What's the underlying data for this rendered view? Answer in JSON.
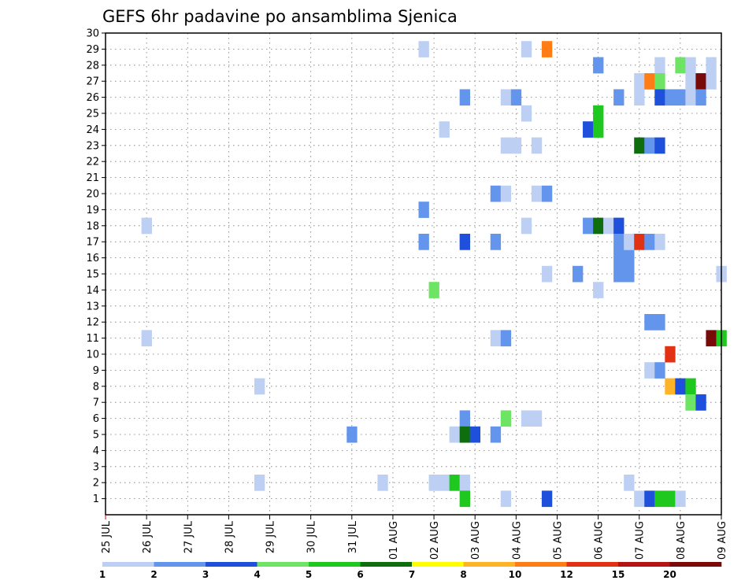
{
  "chart_data": {
    "type": "heatmap",
    "title": "GEFS 6hr padavine po ansamblima Sjenica",
    "x_tick_labels": [
      "25 JUL",
      "26 JUL",
      "27 JUL",
      "28 JUL",
      "29 JUL",
      "30 JUL",
      "31 JUL",
      "01 AUG",
      "02 AUG",
      "03 AUG",
      "04 AUG",
      "05 AUG",
      "06 AUG",
      "07 AUG",
      "08 AUG",
      "09 AUG"
    ],
    "x_unit": "6-hour steps from 25 JUL 00Z",
    "y_tick_labels": [
      "1",
      "2",
      "3",
      "4",
      "5",
      "6",
      "7",
      "8",
      "9",
      "10",
      "11",
      "12",
      "13",
      "14",
      "15",
      "16",
      "17",
      "18",
      "19",
      "20",
      "21",
      "22",
      "23",
      "24",
      "25",
      "26",
      "27",
      "28",
      "29",
      "30"
    ],
    "ylim": [
      0,
      30
    ],
    "grid": true,
    "colorbar": {
      "bounds": [
        "1",
        "2",
        "3",
        "4",
        "5",
        "6",
        "7",
        "8",
        "10",
        "12",
        "15",
        "20"
      ],
      "colors": [
        "#bdd0f4",
        "#6495ed",
        "#1e50dc",
        "#6ee464",
        "#1ec81e",
        "#0e6e0e",
        "#ffff00",
        "#ffb428",
        "#ff7d14",
        "#e13214",
        "#b41414",
        "#780a0a"
      ]
    },
    "cells": [
      {
        "t": 4,
        "m": 11,
        "level": 1
      },
      {
        "t": 4,
        "m": 18,
        "level": 1
      },
      {
        "t": 15,
        "m": 8,
        "level": 1
      },
      {
        "t": 15,
        "m": 2,
        "level": 1
      },
      {
        "t": 24,
        "m": 5,
        "level": 2
      },
      {
        "t": 27,
        "m": 2,
        "level": 1
      },
      {
        "t": 31,
        "m": 29,
        "level": 1
      },
      {
        "t": 31,
        "m": 19,
        "level": 2
      },
      {
        "t": 31,
        "m": 17,
        "level": 2
      },
      {
        "t": 32,
        "m": 14,
        "level": 4
      },
      {
        "t": 32,
        "m": 2,
        "level": 1
      },
      {
        "t": 33,
        "m": 2,
        "level": 1
      },
      {
        "t": 33,
        "m": 24,
        "level": 1
      },
      {
        "t": 34,
        "m": 5,
        "level": 1
      },
      {
        "t": 34,
        "m": 2,
        "level": 5
      },
      {
        "t": 35,
        "m": 26,
        "level": 2
      },
      {
        "t": 35,
        "m": 17,
        "level": 3
      },
      {
        "t": 35,
        "m": 6,
        "level": 2
      },
      {
        "t": 35,
        "m": 5,
        "level": 6
      },
      {
        "t": 35,
        "m": 2,
        "level": 1
      },
      {
        "t": 35,
        "m": 1,
        "level": 5
      },
      {
        "t": 36,
        "m": 5,
        "level": 3
      },
      {
        "t": 38,
        "m": 20,
        "level": 2
      },
      {
        "t": 38,
        "m": 17,
        "level": 2
      },
      {
        "t": 38,
        "m": 11,
        "level": 1
      },
      {
        "t": 38,
        "m": 5,
        "level": 2
      },
      {
        "t": 39,
        "m": 26,
        "level": 1
      },
      {
        "t": 39,
        "m": 23,
        "level": 1
      },
      {
        "t": 39,
        "m": 20,
        "level": 1
      },
      {
        "t": 39,
        "m": 11,
        "level": 2
      },
      {
        "t": 39,
        "m": 6,
        "level": 4
      },
      {
        "t": 39,
        "m": 1,
        "level": 1
      },
      {
        "t": 40,
        "m": 26,
        "level": 2
      },
      {
        "t": 40,
        "m": 23,
        "level": 1
      },
      {
        "t": 41,
        "m": 29,
        "level": 1
      },
      {
        "t": 41,
        "m": 25,
        "level": 1
      },
      {
        "t": 41,
        "m": 18,
        "level": 1
      },
      {
        "t": 41,
        "m": 6,
        "level": 1
      },
      {
        "t": 42,
        "m": 23,
        "level": 1
      },
      {
        "t": 42,
        "m": 20,
        "level": 1
      },
      {
        "t": 42,
        "m": 6,
        "level": 1
      },
      {
        "t": 43,
        "m": 29,
        "level": 9
      },
      {
        "t": 43,
        "m": 20,
        "level": 2
      },
      {
        "t": 43,
        "m": 15,
        "level": 1
      },
      {
        "t": 43,
        "m": 1,
        "level": 3
      },
      {
        "t": 46,
        "m": 15,
        "level": 2
      },
      {
        "t": 47,
        "m": 24,
        "level": 3
      },
      {
        "t": 47,
        "m": 18,
        "level": 2
      },
      {
        "t": 48,
        "m": 28,
        "level": 2
      },
      {
        "t": 48,
        "m": 25,
        "level": 5
      },
      {
        "t": 48,
        "m": 24,
        "level": 5
      },
      {
        "t": 48,
        "m": 18,
        "level": 6
      },
      {
        "t": 48,
        "m": 14,
        "level": 1
      },
      {
        "t": 49,
        "m": 18,
        "level": 1
      },
      {
        "t": 50,
        "m": 26,
        "level": 2
      },
      {
        "t": 50,
        "m": 18,
        "level": 3
      },
      {
        "t": 50,
        "m": 17,
        "level": 2
      },
      {
        "t": 50,
        "m": 16,
        "level": 2
      },
      {
        "t": 50,
        "m": 15,
        "level": 2
      },
      {
        "t": 51,
        "m": 16,
        "level": 2
      },
      {
        "t": 51,
        "m": 15,
        "level": 2
      },
      {
        "t": 51,
        "m": 17,
        "level": 1
      },
      {
        "t": 51,
        "m": 2,
        "level": 1
      },
      {
        "t": 52,
        "m": 27,
        "level": 1
      },
      {
        "t": 52,
        "m": 26,
        "level": 1
      },
      {
        "t": 52,
        "m": 23,
        "level": 6
      },
      {
        "t": 52,
        "m": 17,
        "level": 10
      },
      {
        "t": 52,
        "m": 1,
        "level": 1
      },
      {
        "t": 53,
        "m": 27,
        "level": 9
      },
      {
        "t": 53,
        "m": 23,
        "level": 2
      },
      {
        "t": 53,
        "m": 17,
        "level": 2
      },
      {
        "t": 53,
        "m": 12,
        "level": 2
      },
      {
        "t": 53,
        "m": 9,
        "level": 1
      },
      {
        "t": 53,
        "m": 1,
        "level": 3
      },
      {
        "t": 54,
        "m": 28,
        "level": 1
      },
      {
        "t": 54,
        "m": 27,
        "level": 4
      },
      {
        "t": 54,
        "m": 26,
        "level": 3
      },
      {
        "t": 54,
        "m": 23,
        "level": 3
      },
      {
        "t": 54,
        "m": 17,
        "level": 1
      },
      {
        "t": 54,
        "m": 12,
        "level": 2
      },
      {
        "t": 54,
        "m": 9,
        "level": 2
      },
      {
        "t": 54,
        "m": 1,
        "level": 5
      },
      {
        "t": 55,
        "m": 26,
        "level": 2
      },
      {
        "t": 55,
        "m": 10,
        "level": 10
      },
      {
        "t": 55,
        "m": 8,
        "level": 8
      },
      {
        "t": 55,
        "m": 1,
        "level": 5
      },
      {
        "t": 56,
        "m": 28,
        "level": 4
      },
      {
        "t": 56,
        "m": 26,
        "level": 2
      },
      {
        "t": 56,
        "m": 8,
        "level": 3
      },
      {
        "t": 56,
        "m": 1,
        "level": 1
      },
      {
        "t": 57,
        "m": 28,
        "level": 1
      },
      {
        "t": 57,
        "m": 27,
        "level": 1
      },
      {
        "t": 57,
        "m": 26,
        "level": 1
      },
      {
        "t": 57,
        "m": 8,
        "level": 5
      },
      {
        "t": 57,
        "m": 7,
        "level": 4
      },
      {
        "t": 58,
        "m": 27,
        "level": 12
      },
      {
        "t": 58,
        "m": 26,
        "level": 2
      },
      {
        "t": 58,
        "m": 7,
        "level": 3
      },
      {
        "t": 59,
        "m": 28,
        "level": 1
      },
      {
        "t": 59,
        "m": 27,
        "level": 1
      },
      {
        "t": 59,
        "m": 11,
        "level": 12
      },
      {
        "t": 60,
        "m": 15,
        "level": 1
      },
      {
        "t": 60,
        "m": 11,
        "level": 5
      }
    ]
  }
}
